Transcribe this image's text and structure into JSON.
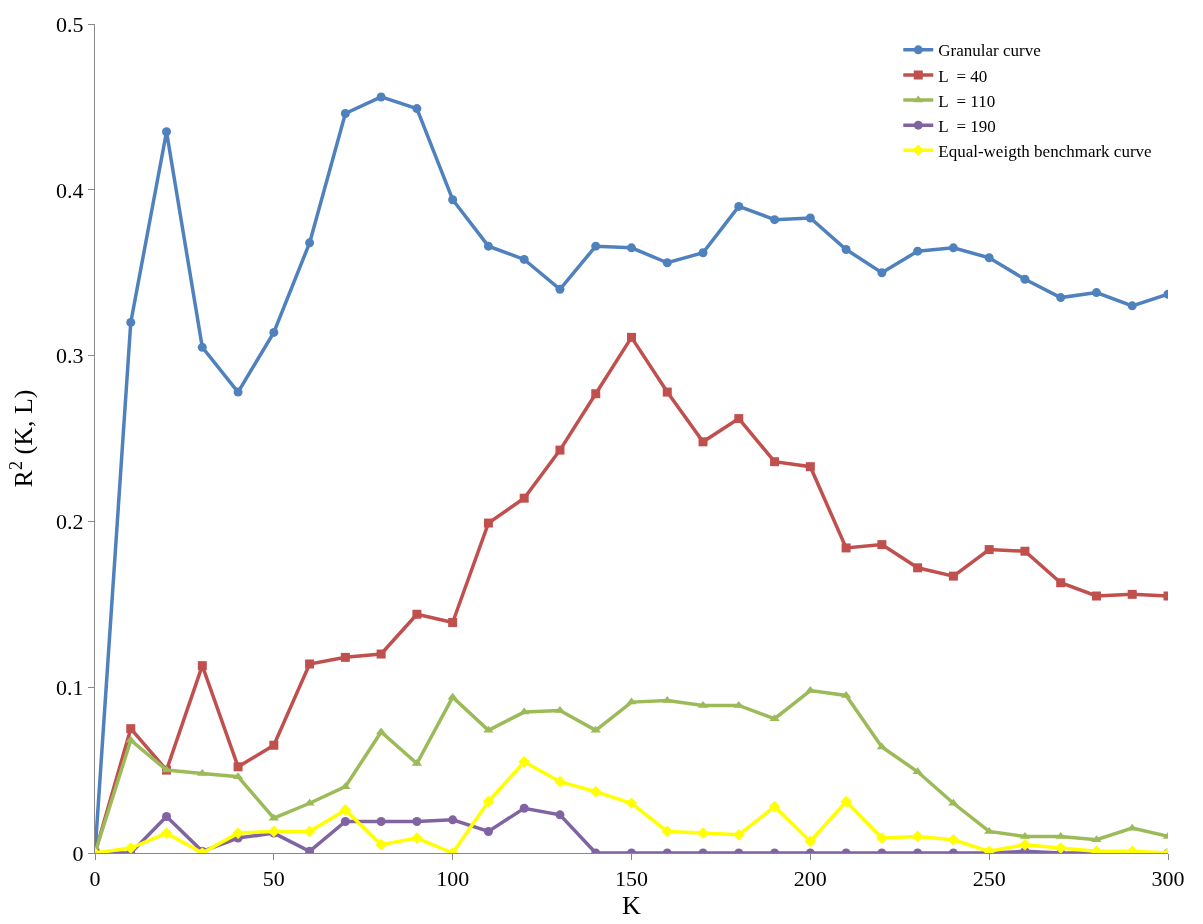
{
  "chart_data": {
    "type": "line",
    "xlabel": "K",
    "ylabel": "R$^{2}$ (K, L)",
    "x": [
      0,
      10,
      20,
      30,
      40,
      50,
      60,
      70,
      80,
      90,
      100,
      110,
      120,
      130,
      140,
      150,
      160,
      170,
      180,
      190,
      200,
      210,
      220,
      230,
      240,
      250,
      260,
      270,
      280,
      290,
      300
    ],
    "xlim": [
      0,
      300
    ],
    "xticks": [
      0,
      50,
      100,
      150,
      200,
      250,
      300
    ],
    "ylim": [
      0,
      0.5
    ],
    "yticks": [
      0,
      0.1,
      0.2,
      0.3,
      0.4,
      0.5
    ],
    "legend": "top right",
    "line_style": "solid",
    "series": [
      {
        "name": "Granular curve",
        "color": "#4f81bd",
        "marker": "circle",
        "values": [
          0,
          0.32,
          0.435,
          0.305,
          0.278,
          0.314,
          0.368,
          0.446,
          0.456,
          0.449,
          0.394,
          0.366,
          0.358,
          0.34,
          0.366,
          0.365,
          0.356,
          0.362,
          0.39,
          0.382,
          0.383,
          0.364,
          0.35,
          0.363,
          0.365,
          0.359,
          0.346,
          0.335,
          0.338,
          0.33,
          0.337
        ]
      },
      {
        "name": "L  = 40",
        "color": "#c0504d",
        "marker": "square",
        "values": [
          0,
          0.075,
          0.05,
          0.113,
          0.052,
          0.065,
          0.114,
          0.118,
          0.12,
          0.144,
          0.139,
          0.199,
          0.214,
          0.243,
          0.277,
          0.311,
          0.278,
          0.248,
          0.262,
          0.236,
          0.233,
          0.184,
          0.186,
          0.172,
          0.167,
          0.183,
          0.182,
          0.163,
          0.155,
          0.156,
          0.155
        ]
      },
      {
        "name": "L  = 110",
        "color": "#9bbb59",
        "marker": "triangle",
        "values": [
          0,
          0.068,
          0.05,
          0.048,
          0.046,
          0.021,
          0.03,
          0.04,
          0.073,
          0.054,
          0.094,
          0.074,
          0.085,
          0.086,
          0.074,
          0.091,
          0.092,
          0.089,
          0.089,
          0.081,
          0.098,
          0.095,
          0.064,
          0.049,
          0.03,
          0.013,
          0.01,
          0.01,
          0.008,
          0.015,
          0.01
        ]
      },
      {
        "name": "L  = 190",
        "color": "#8064a2",
        "marker": "circle",
        "values": [
          0,
          0,
          0.022,
          0.001,
          0.009,
          0.012,
          0.001,
          0.019,
          0.019,
          0.019,
          0.02,
          0.013,
          0.027,
          0.023,
          0,
          0,
          0,
          0,
          0,
          0,
          0,
          0,
          0,
          0,
          0,
          0,
          0.001,
          0,
          0,
          0,
          0
        ]
      },
      {
        "name": "Equal-weigth benchmark curve",
        "color": "#ffff00",
        "marker": "diamond",
        "values": [
          0,
          0.003,
          0.012,
          0,
          0.012,
          0.013,
          0.013,
          0.026,
          0.005,
          0.009,
          0,
          0.031,
          0.055,
          0.043,
          0.037,
          0.03,
          0.013,
          0.012,
          0.011,
          0.028,
          0.007,
          0.031,
          0.009,
          0.01,
          0.008,
          0.001,
          0.005,
          0.003,
          0.001,
          0.001,
          0
        ]
      }
    ]
  }
}
